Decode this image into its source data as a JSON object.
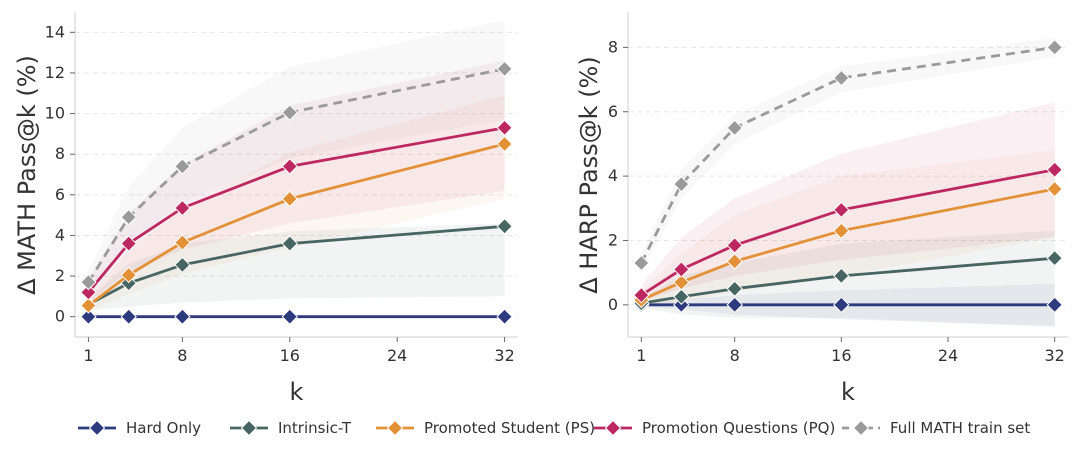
{
  "colors": {
    "hard_only": "#2e3a7e",
    "intrinsic_t": "#476562",
    "promoted_student": "#e39137",
    "promotion_questions": "#bd2862",
    "full_math": "#9a9a9a"
  },
  "legend": {
    "placement": "bottom",
    "items": [
      {
        "key": "hard_only",
        "label": "Hard Only",
        "dashed": false
      },
      {
        "key": "intrinsic_t",
        "label": "Intrinsic-T",
        "dashed": false
      },
      {
        "key": "promoted_student",
        "label": "Promoted Student (PS)",
        "dashed": false
      },
      {
        "key": "promotion_questions",
        "label": "Promotion Questions (PQ)",
        "dashed": false
      },
      {
        "key": "full_math",
        "label": "Full MATH train set",
        "dashed": true
      }
    ]
  },
  "chart_data": [
    {
      "type": "line",
      "title": "",
      "xlabel": "k",
      "ylabel": "Δ MATH Pass@k (%)",
      "x": [
        1,
        4,
        8,
        16,
        32
      ],
      "xticks": [
        1,
        8,
        16,
        24,
        32
      ],
      "yticks": [
        0,
        2,
        4,
        6,
        8,
        10,
        12,
        14
      ],
      "xlim": [
        0,
        33
      ],
      "ylim": [
        -1,
        15
      ],
      "grid": "horizontal dashed",
      "series": [
        {
          "name": "Hard Only",
          "key": "hard_only",
          "dashed": false,
          "values": [
            0,
            0,
            0,
            0,
            0
          ],
          "band_low": [
            0,
            0,
            0,
            0,
            0
          ],
          "band_high": [
            0,
            0,
            0,
            0,
            0
          ]
        },
        {
          "name": "Intrinsic-T",
          "key": "intrinsic_t",
          "dashed": false,
          "values": [
            0.6,
            1.65,
            2.55,
            3.6,
            4.45
          ],
          "band_low": [
            0.3,
            0.5,
            0.7,
            0.9,
            1.0
          ],
          "band_high": [
            0.9,
            2.6,
            3.6,
            4.2,
            4.6
          ]
        },
        {
          "name": "Promoted Student (PS)",
          "key": "promoted_student",
          "dashed": false,
          "values": [
            0.55,
            2.05,
            3.65,
            5.8,
            8.5
          ],
          "band_low": [
            0.3,
            1.1,
            2.1,
            3.4,
            5.8
          ],
          "band_high": [
            0.9,
            3.3,
            5.3,
            8.1,
            10.9
          ]
        },
        {
          "name": "Promotion Questions (PQ)",
          "key": "promotion_questions",
          "dashed": false,
          "values": [
            1.2,
            3.6,
            5.35,
            7.4,
            9.3
          ],
          "band_low": [
            0.7,
            2.2,
            3.3,
            4.6,
            6.2
          ],
          "band_high": [
            1.8,
            5.1,
            7.5,
            10.4,
            12.6
          ]
        },
        {
          "name": "Full MATH train set",
          "key": "full_math",
          "dashed": true,
          "values": [
            1.7,
            4.9,
            7.4,
            10.05,
            12.2
          ],
          "band_low": [
            1.2,
            3.6,
            5.6,
            7.8,
            9.7
          ],
          "band_high": [
            2.3,
            6.4,
            9.3,
            12.3,
            14.6
          ]
        }
      ]
    },
    {
      "type": "line",
      "title": "",
      "xlabel": "k",
      "ylabel": "Δ HARP Pass@k (%)",
      "x": [
        1,
        4,
        8,
        16,
        32
      ],
      "xticks": [
        1,
        8,
        16,
        24,
        32
      ],
      "yticks": [
        0,
        2,
        4,
        6,
        8
      ],
      "xlim": [
        0,
        33
      ],
      "ylim": [
        -1,
        9.1
      ],
      "grid": "horizontal dashed",
      "series": [
        {
          "name": "Hard Only",
          "key": "hard_only",
          "dashed": false,
          "values": [
            0,
            0,
            0,
            0,
            0
          ],
          "band_low": [
            -0.05,
            -0.15,
            -0.3,
            -0.45,
            -0.65
          ],
          "band_high": [
            0.05,
            0.15,
            0.3,
            0.45,
            0.65
          ]
        },
        {
          "name": "Intrinsic-T",
          "key": "intrinsic_t",
          "dashed": false,
          "values": [
            0.05,
            0.25,
            0.5,
            0.9,
            1.45
          ],
          "band_low": [
            -0.1,
            -0.3,
            -0.4,
            -0.4,
            -0.7
          ],
          "band_high": [
            0.2,
            0.9,
            1.3,
            1.9,
            2.3
          ]
        },
        {
          "name": "Promoted Student (PS)",
          "key": "promoted_student",
          "dashed": false,
          "values": [
            0.15,
            0.7,
            1.35,
            2.3,
            3.6
          ],
          "band_low": [
            0,
            0.1,
            0.4,
            0.9,
            2.1
          ],
          "band_high": [
            0.4,
            1.6,
            2.8,
            4.0,
            4.8
          ]
        },
        {
          "name": "Promotion Questions (PQ)",
          "key": "promotion_questions",
          "dashed": false,
          "values": [
            0.3,
            1.1,
            1.85,
            2.95,
            4.2
          ],
          "band_low": [
            0.1,
            0.5,
            0.9,
            1.4,
            2.1
          ],
          "band_high": [
            0.6,
            2.1,
            3.3,
            4.7,
            6.3
          ]
        },
        {
          "name": "Full MATH train set",
          "key": "full_math",
          "dashed": true,
          "values": [
            1.3,
            3.75,
            5.5,
            7.05,
            8.0
          ],
          "band_low": [
            1.0,
            3.3,
            5.0,
            6.6,
            7.7
          ],
          "band_high": [
            1.6,
            4.2,
            5.9,
            7.4,
            8.3
          ]
        }
      ]
    }
  ]
}
